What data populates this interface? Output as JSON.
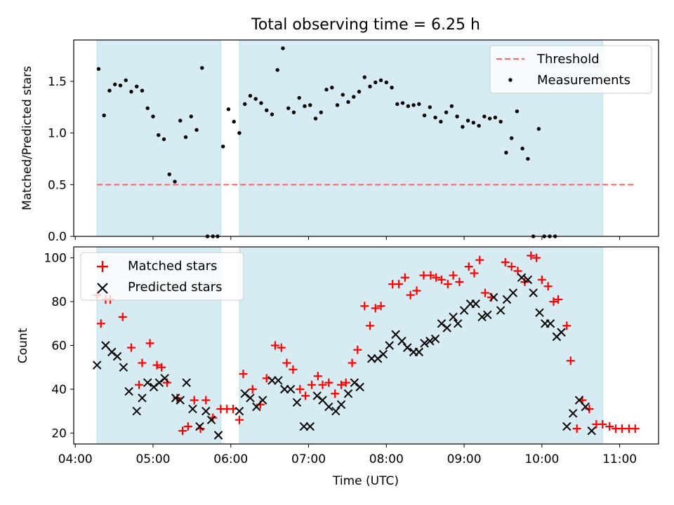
{
  "figure": {
    "title": "Total observing time = 6.25 h",
    "xlabel": "Time (UTC)",
    "xticks": [
      "04:00",
      "05:00",
      "06:00",
      "07:00",
      "08:00",
      "09:00",
      "10:00",
      "11:00"
    ]
  },
  "chart_data": [
    {
      "type": "scatter",
      "title": "Total observing time = 6.25 h",
      "ylabel": "Matched/Predicted stars",
      "xlabel": "",
      "x_units": "hours UTC",
      "xlim": [
        3.98,
        11.5
      ],
      "ylim": [
        0,
        1.9
      ],
      "yticks": [
        "0.0",
        "0.5",
        "1.0",
        "1.5"
      ],
      "grid": false,
      "legend": "top-right",
      "observing_windows": [
        [
          4.28,
          5.87
        ],
        [
          6.11,
          10.78
        ]
      ],
      "threshold": {
        "name": "Threshold",
        "value": 0.5,
        "x_range": [
          4.28,
          11.2
        ],
        "color": "#f07070"
      },
      "series": [
        {
          "name": "Measurements",
          "color": "#000000",
          "marker": "dot",
          "points": [
            [
              4.3,
              1.62
            ],
            [
              4.37,
              1.17
            ],
            [
              4.44,
              1.41
            ],
            [
              4.51,
              1.47
            ],
            [
              4.58,
              1.46
            ],
            [
              4.65,
              1.51
            ],
            [
              4.72,
              1.4
            ],
            [
              4.79,
              1.45
            ],
            [
              4.86,
              1.41
            ],
            [
              4.93,
              1.24
            ],
            [
              5.0,
              1.16
            ],
            [
              5.07,
              0.98
            ],
            [
              5.14,
              0.94
            ],
            [
              5.21,
              0.6
            ],
            [
              5.28,
              0.53
            ],
            [
              5.35,
              1.12
            ],
            [
              5.42,
              0.96
            ],
            [
              5.49,
              1.16
            ],
            [
              5.56,
              1.03
            ],
            [
              5.63,
              1.63
            ],
            [
              5.7,
              0.0
            ],
            [
              5.77,
              0.0
            ],
            [
              5.83,
              0.0
            ],
            [
              5.9,
              0.87
            ],
            [
              5.97,
              1.23
            ],
            [
              6.04,
              1.11
            ],
            [
              6.11,
              1.0
            ],
            [
              6.18,
              1.28
            ],
            [
              6.25,
              1.36
            ],
            [
              6.32,
              1.33
            ],
            [
              6.39,
              1.29
            ],
            [
              6.46,
              1.22
            ],
            [
              6.53,
              1.18
            ],
            [
              6.6,
              1.61
            ],
            [
              6.67,
              1.82
            ],
            [
              6.74,
              1.24
            ],
            [
              6.81,
              1.2
            ],
            [
              6.88,
              1.34
            ],
            [
              6.95,
              1.26
            ],
            [
              7.02,
              1.27
            ],
            [
              7.09,
              1.14
            ],
            [
              7.16,
              1.2
            ],
            [
              7.23,
              1.42
            ],
            [
              7.3,
              1.44
            ],
            [
              7.37,
              1.27
            ],
            [
              7.44,
              1.37
            ],
            [
              7.51,
              1.3
            ],
            [
              7.58,
              1.35
            ],
            [
              7.65,
              1.4
            ],
            [
              7.72,
              1.54
            ],
            [
              7.79,
              1.45
            ],
            [
              7.86,
              1.49
            ],
            [
              7.93,
              1.51
            ],
            [
              8.0,
              1.49
            ],
            [
              8.07,
              1.44
            ],
            [
              8.14,
              1.28
            ],
            [
              8.21,
              1.29
            ],
            [
              8.28,
              1.26
            ],
            [
              8.35,
              1.27
            ],
            [
              8.42,
              1.28
            ],
            [
              8.49,
              1.17
            ],
            [
              8.56,
              1.25
            ],
            [
              8.63,
              1.15
            ],
            [
              8.7,
              1.11
            ],
            [
              8.77,
              1.2
            ],
            [
              8.84,
              1.26
            ],
            [
              8.91,
              1.16
            ],
            [
              8.98,
              1.06
            ],
            [
              9.05,
              1.12
            ],
            [
              9.12,
              1.1
            ],
            [
              9.19,
              1.07
            ],
            [
              9.26,
              1.16
            ],
            [
              9.33,
              1.14
            ],
            [
              9.4,
              1.15
            ],
            [
              9.47,
              1.11
            ],
            [
              9.54,
              0.81
            ],
            [
              9.61,
              0.95
            ],
            [
              9.68,
              1.21
            ],
            [
              9.75,
              0.85
            ],
            [
              9.82,
              0.75
            ],
            [
              9.89,
              0.0
            ],
            [
              9.96,
              1.04
            ],
            [
              10.03,
              0.0
            ],
            [
              10.1,
              0.0
            ],
            [
              10.17,
              0.0
            ]
          ]
        }
      ]
    },
    {
      "type": "scatter",
      "title": "",
      "ylabel": "Count",
      "xlabel": "Time (UTC)",
      "x_units": "hours UTC",
      "xlim": [
        3.98,
        11.5
      ],
      "ylim": [
        15,
        105
      ],
      "yticks": [
        "20",
        "40",
        "60",
        "80",
        "100"
      ],
      "grid": false,
      "legend": "top-left",
      "observing_windows": [
        [
          4.28,
          5.87
        ],
        [
          6.11,
          10.78
        ]
      ],
      "series": [
        {
          "name": "Matched stars",
          "color": "#ff0000",
          "marker": "plus",
          "points": [
            [
              4.28,
              83
            ],
            [
              4.33,
              70
            ],
            [
              4.39,
              81
            ],
            [
              4.45,
              81
            ],
            [
              4.61,
              73
            ],
            [
              4.72,
              59
            ],
            [
              4.82,
              42
            ],
            [
              4.86,
              52
            ],
            [
              4.96,
              61
            ],
            [
              5.05,
              51
            ],
            [
              5.11,
              50
            ],
            [
              5.18,
              43
            ],
            [
              5.31,
              36
            ],
            [
              5.38,
              21
            ],
            [
              5.45,
              23
            ],
            [
              5.53,
              35
            ],
            [
              5.61,
              22
            ],
            [
              5.68,
              35
            ],
            [
              5.77,
              27
            ],
            [
              5.87,
              31
            ],
            [
              5.95,
              31
            ],
            [
              6.03,
              31
            ],
            [
              6.11,
              26
            ],
            [
              6.16,
              47
            ],
            [
              6.28,
              40
            ],
            [
              6.38,
              33
            ],
            [
              6.46,
              45
            ],
            [
              6.57,
              60
            ],
            [
              6.65,
              59
            ],
            [
              6.72,
              52
            ],
            [
              6.8,
              49
            ],
            [
              6.89,
              40
            ],
            [
              6.96,
              37
            ],
            [
              7.04,
              42
            ],
            [
              7.12,
              46
            ],
            [
              7.18,
              42
            ],
            [
              7.26,
              43
            ],
            [
              7.34,
              38
            ],
            [
              7.42,
              42
            ],
            [
              7.48,
              43
            ],
            [
              7.56,
              52
            ],
            [
              7.63,
              58
            ],
            [
              7.72,
              78
            ],
            [
              7.79,
              69
            ],
            [
              7.86,
              77
            ],
            [
              7.93,
              78
            ],
            [
              8.08,
              88
            ],
            [
              8.16,
              88
            ],
            [
              8.24,
              91
            ],
            [
              8.31,
              83
            ],
            [
              8.39,
              85
            ],
            [
              8.48,
              92
            ],
            [
              8.57,
              92
            ],
            [
              8.64,
              91
            ],
            [
              8.71,
              90
            ],
            [
              8.79,
              88
            ],
            [
              8.86,
              92
            ],
            [
              8.94,
              89
            ],
            [
              9.06,
              96
            ],
            [
              9.13,
              93
            ],
            [
              9.2,
              99
            ],
            [
              9.27,
              84
            ],
            [
              9.35,
              82
            ],
            [
              9.53,
              98
            ],
            [
              9.61,
              96
            ],
            [
              9.69,
              94
            ],
            [
              9.78,
              89
            ],
            [
              9.86,
              101
            ],
            [
              9.93,
              100
            ],
            [
              10.0,
              90
            ],
            [
              10.08,
              87
            ],
            [
              10.15,
              80
            ],
            [
              10.21,
              81
            ],
            [
              10.32,
              69
            ],
            [
              10.37,
              53
            ],
            [
              10.45,
              22
            ],
            [
              10.52,
              35
            ],
            [
              10.61,
              31
            ],
            [
              10.7,
              24
            ],
            [
              10.78,
              24
            ],
            [
              10.87,
              23
            ],
            [
              10.95,
              22
            ],
            [
              11.03,
              22
            ],
            [
              11.12,
              22
            ],
            [
              11.2,
              22
            ]
          ]
        },
        {
          "name": "Predicted stars",
          "color": "#000000",
          "marker": "x",
          "points": [
            [
              4.28,
              51
            ],
            [
              4.39,
              60
            ],
            [
              4.47,
              57
            ],
            [
              4.54,
              55
            ],
            [
              4.62,
              50
            ],
            [
              4.69,
              39
            ],
            [
              4.79,
              30
            ],
            [
              4.86,
              36
            ],
            [
              4.93,
              43
            ],
            [
              5.01,
              41
            ],
            [
              5.08,
              43
            ],
            [
              5.15,
              45
            ],
            [
              5.29,
              36
            ],
            [
              5.35,
              35
            ],
            [
              5.43,
              43
            ],
            [
              5.51,
              31
            ],
            [
              5.6,
              23
            ],
            [
              5.68,
              30
            ],
            [
              5.75,
              26
            ],
            [
              5.84,
              19
            ],
            [
              6.11,
              30
            ],
            [
              6.18,
              38
            ],
            [
              6.25,
              36
            ],
            [
              6.33,
              32
            ],
            [
              6.41,
              35
            ],
            [
              6.53,
              44
            ],
            [
              6.61,
              44
            ],
            [
              6.69,
              40
            ],
            [
              6.77,
              40
            ],
            [
              6.85,
              34
            ],
            [
              6.94,
              23
            ],
            [
              7.02,
              23
            ],
            [
              7.11,
              37
            ],
            [
              7.18,
              35
            ],
            [
              7.26,
              32
            ],
            [
              7.35,
              30
            ],
            [
              7.42,
              33
            ],
            [
              7.51,
              38
            ],
            [
              7.59,
              43
            ],
            [
              7.66,
              41
            ],
            [
              7.81,
              54
            ],
            [
              7.89,
              54
            ],
            [
              7.96,
              56
            ],
            [
              8.04,
              60
            ],
            [
              8.12,
              65
            ],
            [
              8.2,
              62
            ],
            [
              8.27,
              59
            ],
            [
              8.35,
              57
            ],
            [
              8.42,
              57
            ],
            [
              8.49,
              61
            ],
            [
              8.56,
              62
            ],
            [
              8.63,
              63
            ],
            [
              8.71,
              70
            ],
            [
              8.78,
              68
            ],
            [
              8.86,
              73
            ],
            [
              8.92,
              70
            ],
            [
              9.0,
              76
            ],
            [
              9.08,
              79
            ],
            [
              9.15,
              79
            ],
            [
              9.23,
              73
            ],
            [
              9.3,
              74
            ],
            [
              9.38,
              82
            ],
            [
              9.47,
              76
            ],
            [
              9.55,
              81
            ],
            [
              9.63,
              84
            ],
            [
              9.74,
              91
            ],
            [
              9.82,
              90
            ],
            [
              9.89,
              84
            ],
            [
              9.97,
              75
            ],
            [
              10.04,
              70
            ],
            [
              10.11,
              70
            ],
            [
              10.19,
              64
            ],
            [
              10.25,
              66
            ],
            [
              10.32,
              23
            ],
            [
              10.4,
              29
            ],
            [
              10.48,
              35
            ],
            [
              10.56,
              32
            ],
            [
              10.64,
              21
            ]
          ]
        }
      ]
    }
  ]
}
